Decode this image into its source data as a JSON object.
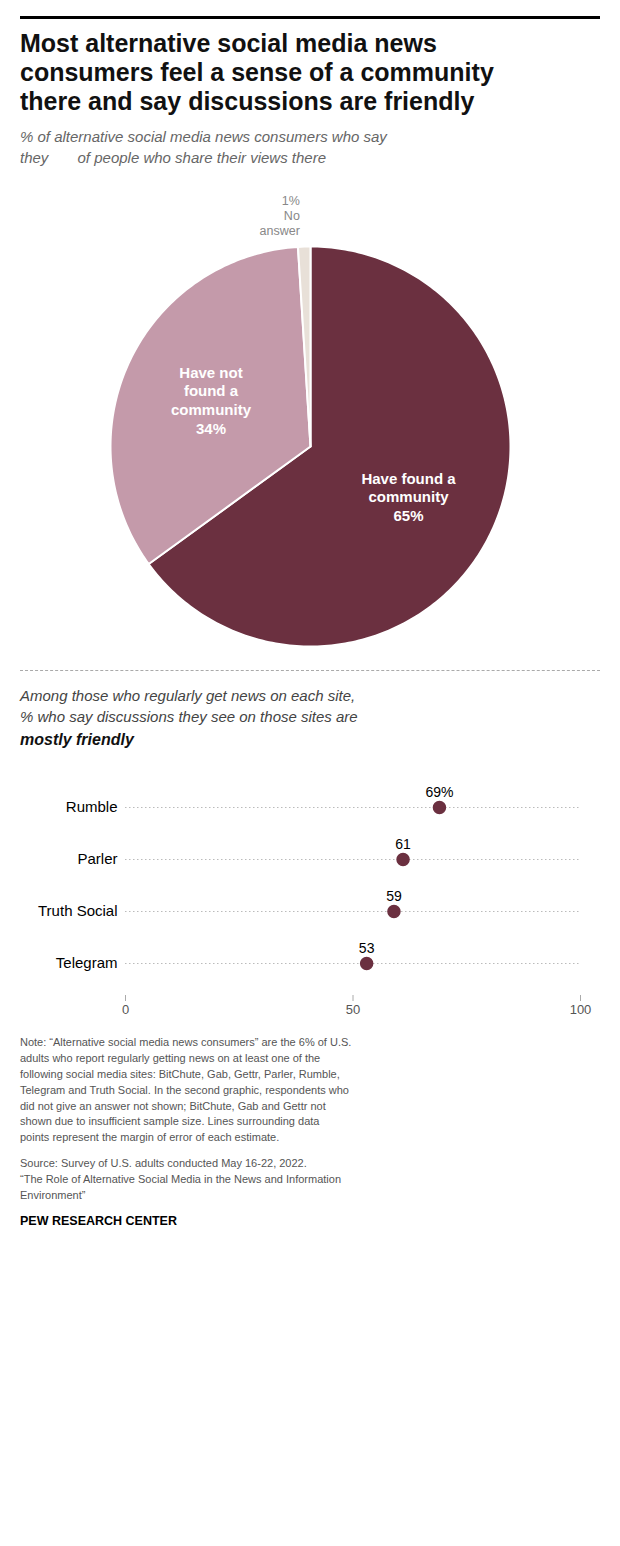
{
  "chart_data": [
    {
      "type": "pie",
      "title": "Most alternative social media news\nconsumers feel a sense of a community\nthere and say discussions are friendly",
      "subtitle": "% of alternative social media news consumers who say\nthey       of people who share their views there",
      "categories": [
        "Have found a\ncommunity",
        "Have not\nfound a\ncommunity",
        "No\nanswer"
      ],
      "values": [
        65,
        34,
        1
      ],
      "value_labels": [
        "65%",
        "34%",
        "1%"
      ],
      "colors": [
        "#6b3040",
        "#c49aaa",
        "#e8e0d8"
      ],
      "data_labels": true
    },
    {
      "type": "dot",
      "title": "Among those who regularly get news on each site,\n% who say discussions they see on those sites are",
      "subtitle": "mostly friendly",
      "categories": [
        "Rumble",
        "Parler",
        "Truth Social",
        "Telegram"
      ],
      "values": [
        69,
        61,
        59,
        53
      ],
      "value_labels": [
        "69%",
        "61",
        "59",
        "53"
      ],
      "color": "#6b3040",
      "xlim": [
        0,
        100
      ],
      "xticks": [
        0,
        50,
        100
      ],
      "data_labels": true
    }
  ],
  "note": "Note: “Alternative social media news consumers” are the 6% of U.S.\nadults who report regularly getting news on at least one of the\nfollowing social media sites: BitChute, Gab, Gettr, Parler, Rumble,\nTelegram and Truth Social. In the second graphic, respondents who\ndid not give an answer not shown; BitChute, Gab and Gettr not\nshown due to insufficient sample size. Lines surrounding data\npoints represent the margin of error of each estimate.",
  "source": "Source: Survey of U.S. adults conducted May 16-22, 2022.\n“The Role of Alternative Social Media in the News and Information\nEnvironment”",
  "credit": "PEW RESEARCH CENTER"
}
